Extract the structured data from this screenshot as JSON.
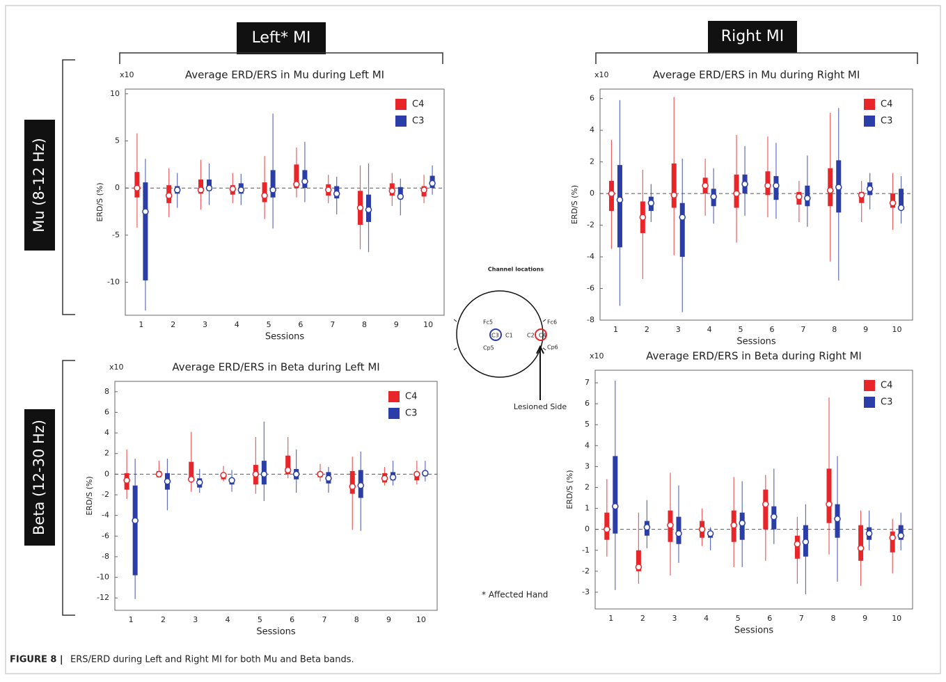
{
  "headers": {
    "left": "Left* MI",
    "right": "Right MI"
  },
  "rows": [
    "Mu (8-12 Hz)",
    "Beta (12-30 Hz)"
  ],
  "diagram": {
    "title": "Channel locations",
    "electrodes": [
      "Fc5",
      "C3",
      "C1",
      "Cp5",
      "C2",
      "C4",
      "Fc6",
      "Cp6"
    ],
    "arrow_label": "Lesioned Side"
  },
  "note": "* Affected Hand",
  "caption_label": "FIGURE 8 |",
  "caption": "ERS/ERD during Left and Right MI for both Mu and Beta bands.",
  "chart_data": [
    {
      "type": "box",
      "title": "Average ERD/ERS in Mu during Left MI",
      "multiplier": "x10",
      "y_label": "ERD/S (%)",
      "x_label": "Sessions",
      "legend": "upper right",
      "categories": [
        "1",
        "2",
        "3",
        "4",
        "5",
        "6",
        "7",
        "8",
        "9",
        "10"
      ],
      "ylim": [
        -13.5,
        10.5
      ],
      "yticks": [
        -10,
        -5,
        0,
        5,
        10
      ],
      "series": [
        {
          "name": "C4",
          "color": "#e8262a",
          "whislo": [
            -4.2,
            -3.1,
            -2.3,
            -1.6,
            -3.3,
            -1,
            -1.6,
            -6.5,
            -1.9,
            -1.6
          ],
          "q1": [
            -1,
            -1.6,
            -0.6,
            -0.7,
            -1.5,
            0,
            -0.8,
            -3.9,
            -0.8,
            -0.9
          ],
          "median": [
            0,
            -0.8,
            -0.2,
            -0.1,
            -0.8,
            0.4,
            -0.2,
            -2.1,
            -0.3,
            -0.2
          ],
          "q3": [
            1.7,
            0.3,
            0.9,
            0.3,
            0.6,
            2.5,
            0.4,
            -0.3,
            0.5,
            0.2
          ],
          "whishi": [
            5.8,
            2.1,
            3,
            1.6,
            3.4,
            4.3,
            1.4,
            2.4,
            1.6,
            1.4
          ]
        },
        {
          "name": "C3",
          "color": "#2b3da6",
          "whislo": [
            -13,
            -2.1,
            -1.8,
            -1.8,
            -4.3,
            -1.5,
            -2.8,
            -6.8,
            -2.9,
            -0.7
          ],
          "q1": [
            -9.8,
            -0.6,
            -0.3,
            -0.6,
            -1,
            0,
            -1.1,
            -3.6,
            -1.2,
            0
          ],
          "median": [
            -2.5,
            -0.2,
            0,
            -0.2,
            -0.2,
            0.7,
            -0.6,
            -2.3,
            -0.9,
            0.5
          ],
          "q3": [
            0.6,
            0.2,
            0.9,
            0.5,
            1.9,
            1.9,
            0.2,
            -0.7,
            0.1,
            1.3
          ],
          "whishi": [
            3.1,
            1.6,
            2.6,
            1.5,
            7.9,
            4.9,
            1.2,
            2.6,
            1,
            2.4
          ]
        }
      ]
    },
    {
      "type": "box",
      "title": "Average ERD/ERS in Mu during Right MI",
      "multiplier": "x10",
      "y_label": "ERD/S (%)",
      "x_label": "Sessions",
      "legend": "upper right",
      "categories": [
        "1",
        "2",
        "3",
        "4",
        "5",
        "6",
        "7",
        "8",
        "9",
        "10"
      ],
      "ylim": [
        -8,
        6.6
      ],
      "yticks": [
        -8,
        -6,
        -4,
        -2,
        0,
        2,
        4,
        6
      ],
      "series": [
        {
          "name": "C4",
          "color": "#e8262a",
          "whislo": [
            -3.5,
            -5.4,
            -3.9,
            -1.4,
            -3.1,
            -1.5,
            -1.8,
            -4.3,
            -1.8,
            -2.3
          ],
          "q1": [
            -1.1,
            -2.5,
            -0.9,
            0,
            -0.9,
            -0.1,
            -0.7,
            -0.8,
            -0.6,
            -0.9
          ],
          "median": [
            0,
            -1.5,
            -0.1,
            0.5,
            0,
            0.5,
            -0.2,
            0.2,
            -0.1,
            -0.6
          ],
          "q3": [
            0.8,
            -0.5,
            1.9,
            1,
            1.2,
            1.4,
            0.1,
            1.6,
            0.1,
            0
          ],
          "whishi": [
            3.4,
            1.5,
            6.1,
            2.2,
            3.7,
            3.6,
            0.8,
            5.1,
            0.8,
            1.3
          ]
        },
        {
          "name": "C3",
          "color": "#2b3da6",
          "whislo": [
            -7.1,
            -1.8,
            -7.5,
            -1.9,
            -1.4,
            -1.6,
            -2.1,
            -5.5,
            -1,
            -1.9
          ],
          "q1": [
            -3.4,
            -1.1,
            -4,
            -0.8,
            0,
            -0.4,
            -0.8,
            -1.2,
            -0.1,
            -1
          ],
          "median": [
            -0.4,
            -0.6,
            -1.5,
            -0.2,
            0.6,
            0.5,
            -0.3,
            0.4,
            0.3,
            -0.9
          ],
          "q3": [
            1.8,
            -0.2,
            -0.6,
            0.3,
            1.2,
            1.1,
            0.5,
            2.1,
            0.7,
            0.3
          ],
          "whishi": [
            5.9,
            0.6,
            2.2,
            1.6,
            3,
            3.2,
            2.4,
            5.4,
            1.3,
            1.1
          ]
        }
      ]
    },
    {
      "type": "box",
      "title": "Average ERD/ERS in Beta during Left MI",
      "multiplier": "x10",
      "y_label": "ERD/S (%)",
      "x_label": "Sessions",
      "legend": "upper right",
      "categories": [
        "1",
        "2",
        "3",
        "4",
        "5",
        "6",
        "7",
        "8",
        "9",
        "10"
      ],
      "ylim": [
        -13.2,
        9
      ],
      "yticks": [
        -12,
        -10,
        -8,
        -6,
        -4,
        -2,
        0,
        2,
        4,
        6,
        8
      ],
      "series": [
        {
          "name": "C4",
          "color": "#e8262a",
          "whislo": [
            -2.4,
            -0.2,
            -1.7,
            -0.7,
            -1.9,
            -0.4,
            -0.7,
            -5.4,
            -1.1,
            -1
          ],
          "q1": [
            -1.5,
            -0.3,
            -0.6,
            -0.5,
            -1,
            0,
            -0.3,
            -1.9,
            -0.8,
            -0.6
          ],
          "median": [
            -0.6,
            0,
            -0.5,
            -0.1,
            0,
            0.4,
            0,
            -1.2,
            -0.4,
            0
          ],
          "q3": [
            0.1,
            0.3,
            1.2,
            0.1,
            0.9,
            1.8,
            0.2,
            0.3,
            0.1,
            0.2
          ],
          "whishi": [
            2.4,
            1.3,
            4.1,
            0.8,
            3.6,
            3.6,
            1,
            1.7,
            0.7,
            1.3
          ]
        },
        {
          "name": "C3",
          "color": "#2b3da6",
          "whislo": [
            -12.1,
            -3.5,
            -1.8,
            -1.7,
            -2.6,
            -1.8,
            -1.8,
            -5.5,
            -1.1,
            -0.7
          ],
          "q1": [
            -9.8,
            -1.5,
            -1.3,
            -1,
            -1,
            -0.5,
            -0.9,
            -2.3,
            -0.6,
            -0.2
          ],
          "median": [
            -4.5,
            -0.7,
            -0.8,
            -0.6,
            0,
            0,
            -0.4,
            -1.1,
            -0.3,
            0.1
          ],
          "q3": [
            -1.1,
            0.1,
            -0.4,
            -0.4,
            1.3,
            0.5,
            0.2,
            0.4,
            0.2,
            0.2
          ],
          "whishi": [
            1.5,
            1.5,
            0.5,
            0.4,
            5.1,
            2.4,
            0.7,
            2.2,
            1.3,
            1.3
          ]
        }
      ]
    },
    {
      "type": "box",
      "title": "Average ERD/ERS in Beta during Right MI",
      "multiplier": "x10",
      "y_label": "ERD/S (%)",
      "x_label": "Sessions",
      "legend": "upper right",
      "categories": [
        "1",
        "2",
        "3",
        "4",
        "5",
        "6",
        "7",
        "8",
        "9",
        "10"
      ],
      "ylim": [
        -3.8,
        7.6
      ],
      "yticks": [
        -3,
        -2,
        -1,
        0,
        1,
        2,
        3,
        4,
        5,
        6,
        7
      ],
      "series": [
        {
          "name": "C4",
          "color": "#e8262a",
          "whislo": [
            -1.3,
            -2.6,
            -2.2,
            -0.8,
            -1.8,
            -1.5,
            -2.6,
            -1.2,
            -2.7,
            -2.1
          ],
          "q1": [
            -0.5,
            -2,
            -0.6,
            -0.4,
            -0.6,
            0,
            -1.4,
            0.3,
            -1.5,
            -1.1
          ],
          "median": [
            0,
            -1.8,
            0.2,
            0,
            0.2,
            1.2,
            -0.7,
            1.2,
            -0.9,
            -0.4
          ],
          "q3": [
            0.8,
            -1,
            0.9,
            0.4,
            0.9,
            1.9,
            -0.3,
            2.9,
            0.2,
            -0.1
          ],
          "whishi": [
            2.4,
            0.8,
            2.7,
            1,
            2.5,
            2.6,
            0.6,
            6.3,
            0.9,
            0.5
          ]
        },
        {
          "name": "C3",
          "color": "#2b3da6",
          "whislo": [
            -2.9,
            -0.9,
            -1.6,
            -1,
            -1.8,
            -0.7,
            -3.1,
            -2.5,
            -1,
            -1
          ],
          "q1": [
            -0.2,
            -0.3,
            -0.7,
            -0.4,
            -0.5,
            0,
            -1.3,
            -0.4,
            -0.5,
            -0.5
          ],
          "median": [
            1.1,
            0.1,
            -0.2,
            -0.2,
            0.3,
            0.6,
            -0.6,
            0.5,
            -0.2,
            -0.3
          ],
          "q3": [
            3.5,
            0.4,
            0.6,
            -0.1,
            0.8,
            1.1,
            0.2,
            1.2,
            0.1,
            0.2
          ],
          "whishi": [
            7.1,
            1.4,
            2.1,
            0.1,
            2.3,
            2.9,
            1.2,
            3.5,
            0.9,
            0.8
          ]
        }
      ]
    }
  ]
}
